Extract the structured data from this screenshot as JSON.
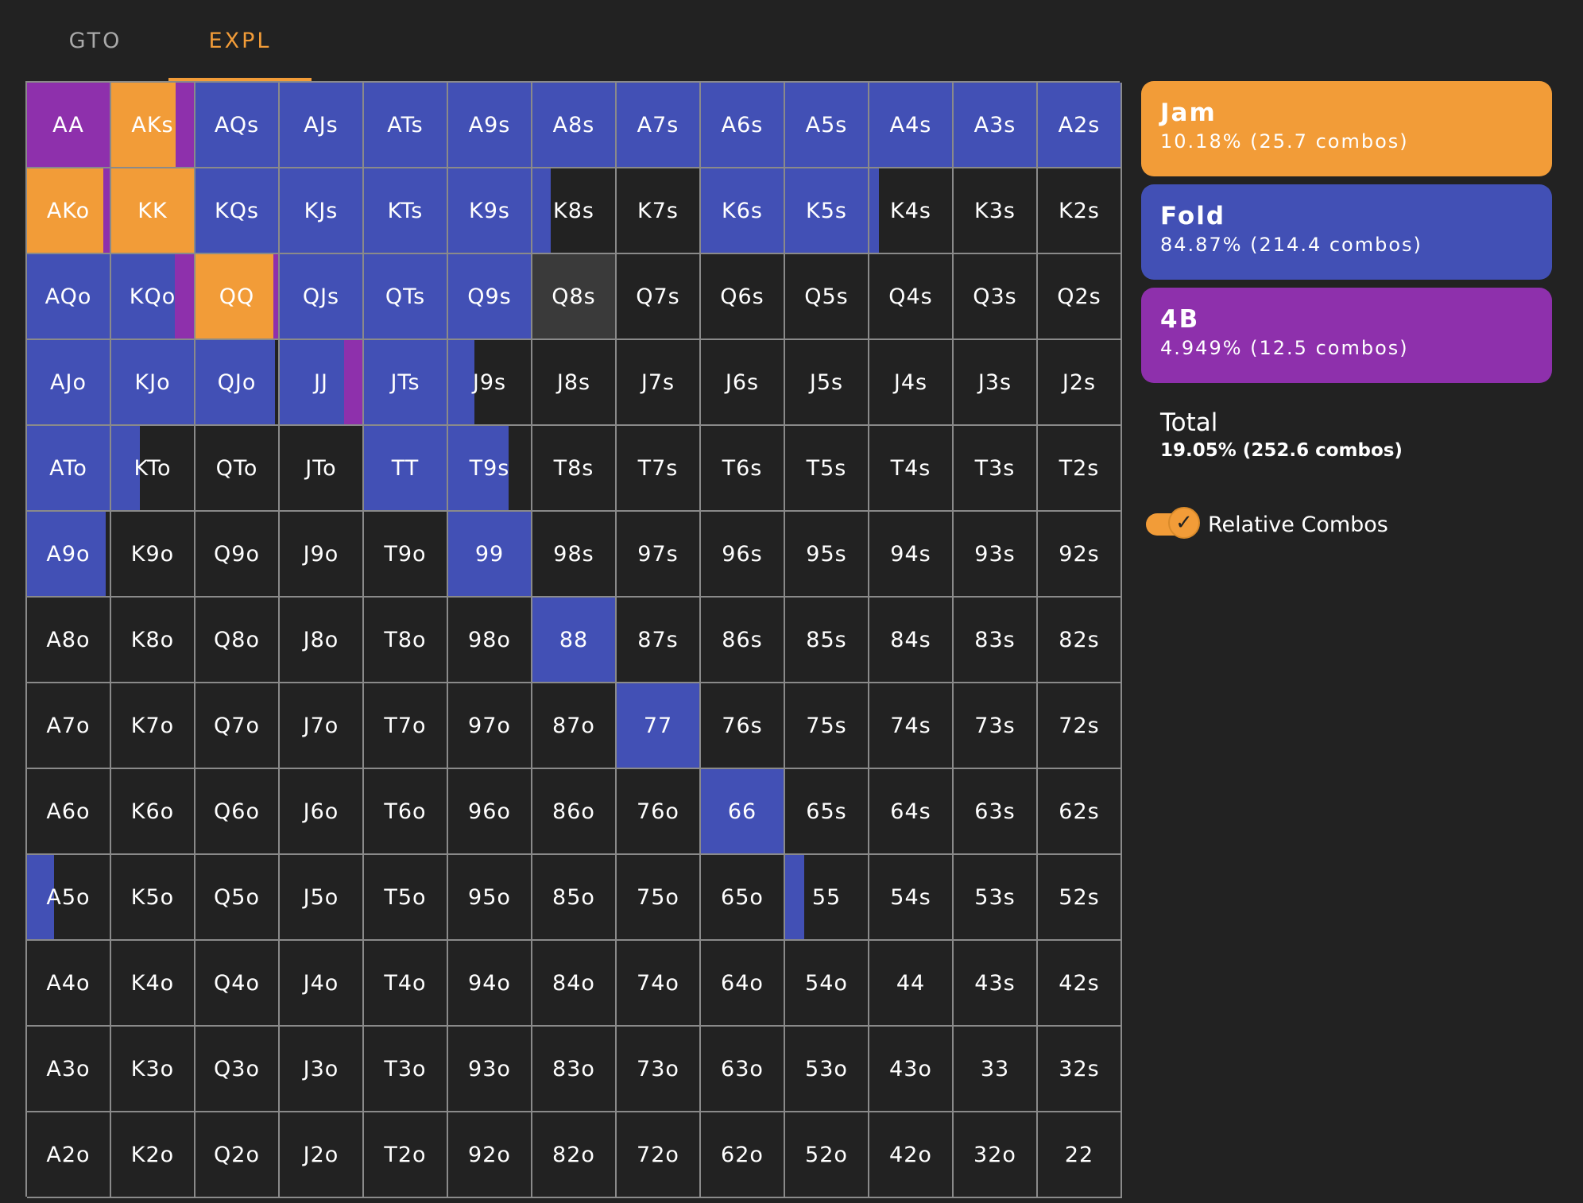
{
  "tabs": [
    {
      "label": "GTO",
      "active": false
    },
    {
      "label": "EXPL",
      "active": true
    }
  ],
  "actions": [
    {
      "name": "Jam",
      "stat": "10.18% (25.7 combos)",
      "color": "#f29c38"
    },
    {
      "name": "Fold",
      "stat": "84.87% (214.4 combos)",
      "color": "#4250b5"
    },
    {
      "name": "4B",
      "stat": "4.949% (12.5 combos)",
      "color": "#8e30ac"
    }
  ],
  "total": {
    "name": "Total",
    "stat": "19.05% (252.6 combos)"
  },
  "toggle": {
    "label": "Relative Combos",
    "checked": true,
    "icon": "check-icon"
  },
  "colors": {
    "jam": "#f29c38",
    "fold": "#4250b5",
    "fourbet": "#8e30ac",
    "empty": "#222222",
    "highlight": "#3a3a3a"
  },
  "grid": {
    "rows": [
      [
        "AA",
        "AKs",
        "AQs",
        "AJs",
        "ATs",
        "A9s",
        "A8s",
        "A7s",
        "A6s",
        "A5s",
        "A4s",
        "A3s",
        "A2s"
      ],
      [
        "AKo",
        "KK",
        "KQs",
        "KJs",
        "KTs",
        "K9s",
        "K8s",
        "K7s",
        "K6s",
        "K5s",
        "K4s",
        "K3s",
        "K2s"
      ],
      [
        "AQo",
        "KQo",
        "QQ",
        "QJs",
        "QTs",
        "Q9s",
        "Q8s",
        "Q7s",
        "Q6s",
        "Q5s",
        "Q4s",
        "Q3s",
        "Q2s"
      ],
      [
        "AJo",
        "KJo",
        "QJo",
        "JJ",
        "JTs",
        "J9s",
        "J8s",
        "J7s",
        "J6s",
        "J5s",
        "J4s",
        "J3s",
        "J2s"
      ],
      [
        "ATo",
        "KTo",
        "QTo",
        "JTo",
        "TT",
        "T9s",
        "T8s",
        "T7s",
        "T6s",
        "T5s",
        "T4s",
        "T3s",
        "T2s"
      ],
      [
        "A9o",
        "K9o",
        "Q9o",
        "J9o",
        "T9o",
        "99",
        "98s",
        "97s",
        "96s",
        "95s",
        "94s",
        "93s",
        "92s"
      ],
      [
        "A8o",
        "K8o",
        "Q8o",
        "J8o",
        "T8o",
        "98o",
        "88",
        "87s",
        "86s",
        "85s",
        "84s",
        "83s",
        "82s"
      ],
      [
        "A7o",
        "K7o",
        "Q7o",
        "J7o",
        "T7o",
        "97o",
        "87o",
        "77",
        "76s",
        "75s",
        "74s",
        "73s",
        "72s"
      ],
      [
        "A6o",
        "K6o",
        "Q6o",
        "J6o",
        "T6o",
        "96o",
        "86o",
        "76o",
        "66",
        "65s",
        "64s",
        "63s",
        "62s"
      ],
      [
        "A5o",
        "K5o",
        "Q5o",
        "J5o",
        "T5o",
        "95o",
        "85o",
        "75o",
        "65o",
        "55",
        "54s",
        "53s",
        "52s"
      ],
      [
        "A4o",
        "K4o",
        "Q4o",
        "J4o",
        "T4o",
        "94o",
        "84o",
        "74o",
        "64o",
        "54o",
        "44",
        "43s",
        "42s"
      ],
      [
        "A3o",
        "K3o",
        "Q3o",
        "J3o",
        "T3o",
        "93o",
        "83o",
        "73o",
        "63o",
        "53o",
        "43o",
        "33",
        "32s"
      ],
      [
        "A2o",
        "K2o",
        "Q2o",
        "J2o",
        "T2o",
        "92o",
        "82o",
        "72o",
        "62o",
        "52o",
        "42o",
        "32o",
        "22"
      ]
    ],
    "strategies": {
      "AA": [
        [
          "fourbet",
          1
        ]
      ],
      "AKs": [
        [
          "jam",
          0.78
        ],
        [
          "fourbet",
          0.22
        ]
      ],
      "AQs": [
        [
          "fold",
          1
        ]
      ],
      "AJs": [
        [
          "fold",
          1
        ]
      ],
      "ATs": [
        [
          "fold",
          1
        ]
      ],
      "A9s": [
        [
          "fold",
          1
        ]
      ],
      "A8s": [
        [
          "fold",
          1
        ]
      ],
      "A7s": [
        [
          "fold",
          1
        ]
      ],
      "A6s": [
        [
          "fold",
          1
        ]
      ],
      "A5s": [
        [
          "fold",
          1
        ]
      ],
      "A4s": [
        [
          "fold",
          1
        ]
      ],
      "A3s": [
        [
          "fold",
          1
        ]
      ],
      "A2s": [
        [
          "fold",
          1
        ]
      ],
      "AKo": [
        [
          "jam",
          0.92
        ],
        [
          "fourbet",
          0.08
        ]
      ],
      "KK": [
        [
          "jam",
          1
        ]
      ],
      "KQs": [
        [
          "fold",
          1
        ]
      ],
      "KJs": [
        [
          "fold",
          1
        ]
      ],
      "KTs": [
        [
          "fold",
          1
        ]
      ],
      "K9s": [
        [
          "fold",
          1
        ]
      ],
      "K8s": [
        [
          "fold",
          0.22
        ]
      ],
      "K6s": [
        [
          "fold",
          1
        ]
      ],
      "K5s": [
        [
          "fold",
          1
        ]
      ],
      "K4s": [
        [
          "fold",
          0.12
        ]
      ],
      "AQo": [
        [
          "fold",
          1
        ]
      ],
      "KQo": [
        [
          "fold",
          0.77
        ],
        [
          "fourbet",
          0.23
        ]
      ],
      "QQ": [
        [
          "jam",
          0.94
        ],
        [
          "fourbet",
          0.06
        ]
      ],
      "QJs": [
        [
          "fold",
          1
        ]
      ],
      "QTs": [
        [
          "fold",
          1
        ]
      ],
      "Q9s": [
        [
          "fold",
          1
        ]
      ],
      "AJo": [
        [
          "fold",
          1
        ]
      ],
      "KJo": [
        [
          "fold",
          1
        ]
      ],
      "QJo": [
        [
          "fold",
          0.96
        ]
      ],
      "JJ": [
        [
          "fold",
          0.78
        ],
        [
          "fourbet",
          0.22
        ]
      ],
      "JTs": [
        [
          "fold",
          1
        ]
      ],
      "J9s": [
        [
          "fold",
          0.32
        ]
      ],
      "ATo": [
        [
          "fold",
          1
        ]
      ],
      "KTo": [
        [
          "fold",
          0.35
        ]
      ],
      "TT": [
        [
          "fold",
          1
        ]
      ],
      "T9s": [
        [
          "fold",
          0.73
        ]
      ],
      "A9o": [
        [
          "fold",
          0.95
        ]
      ],
      "99": [
        [
          "fold",
          1
        ]
      ],
      "88": [
        [
          "fold",
          1
        ]
      ],
      "77": [
        [
          "fold",
          1
        ]
      ],
      "66": [
        [
          "fold",
          1
        ]
      ],
      "A5o": [
        [
          "fold",
          0.33
        ]
      ],
      "55": [
        [
          "fold",
          0.23
        ]
      ]
    },
    "highlighted": [
      "Q8s"
    ]
  }
}
